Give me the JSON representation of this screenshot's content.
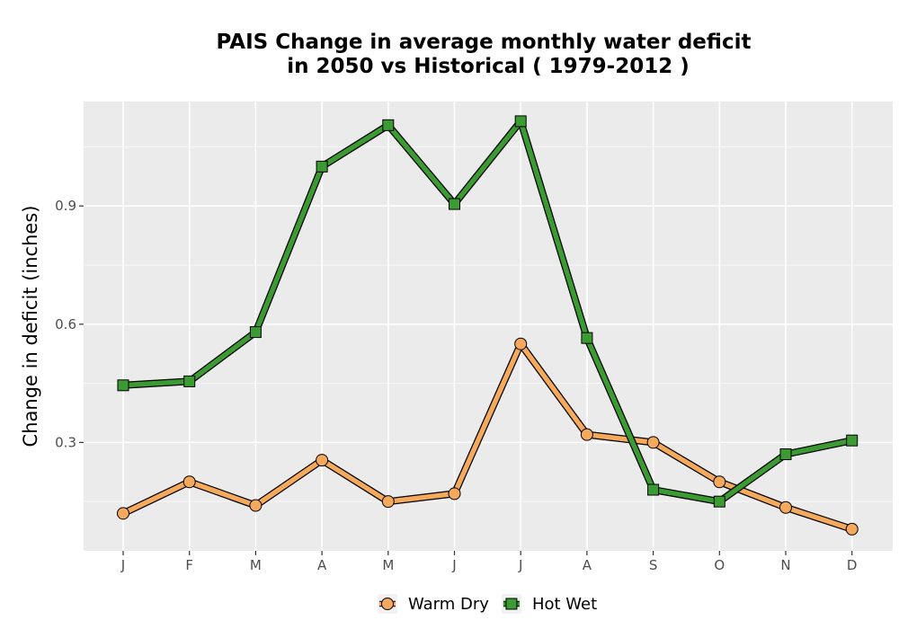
{
  "chart_data": {
    "type": "line",
    "title_lines": [
      "PAIS  Change in average monthly water deficit",
      "in 2050 vs Historical ( 1979-2012 )"
    ],
    "xlabel": "",
    "ylabel": "Change in deficit (inches)",
    "categories": [
      "J",
      "F",
      "M",
      "A",
      "M",
      "J",
      "J",
      "A",
      "S",
      "O",
      "N",
      "D"
    ],
    "yticks": [
      0.3,
      0.6,
      0.9
    ],
    "ylim": [
      0.025,
      1.165
    ],
    "grid": true,
    "legend_position": "bottom",
    "series": [
      {
        "name": "Warm Dry",
        "color": "#f4a95c",
        "marker": "circle",
        "values": [
          0.12,
          0.2,
          0.14,
          0.255,
          0.15,
          0.17,
          0.55,
          0.32,
          0.3,
          0.2,
          0.135,
          0.08
        ]
      },
      {
        "name": "Hot Wet",
        "color": "#3c9a32",
        "marker": "square",
        "values": [
          0.445,
          0.455,
          0.58,
          1.0,
          1.105,
          0.905,
          1.115,
          0.565,
          0.18,
          0.15,
          0.27,
          0.305
        ]
      }
    ]
  }
}
